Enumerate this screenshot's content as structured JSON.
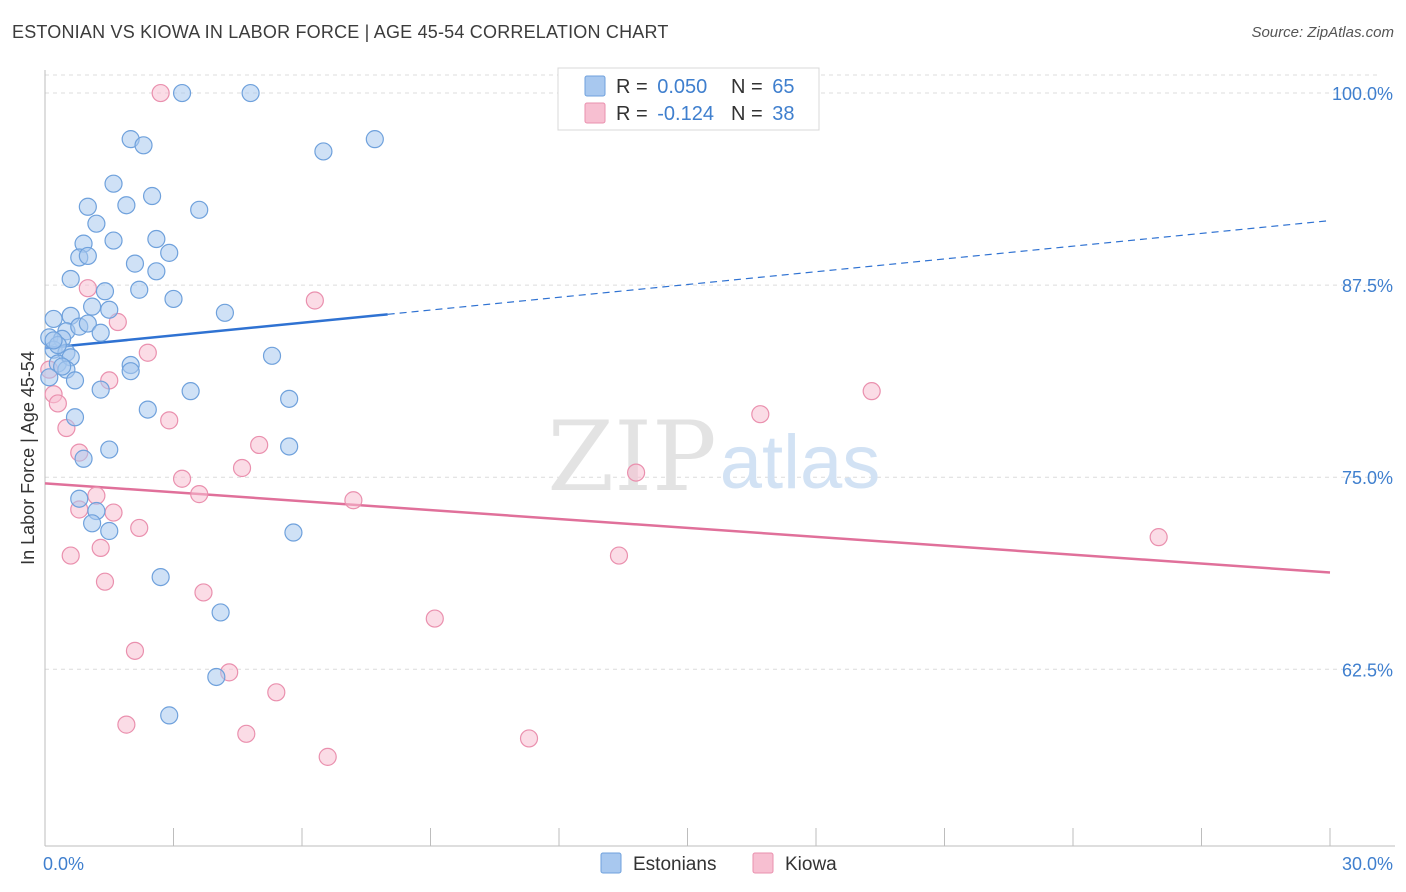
{
  "header": {
    "title": "ESTONIAN VS KIOWA IN LABOR FORCE | AGE 45-54 CORRELATION CHART",
    "source": "Source: ZipAtlas.com"
  },
  "watermark": {
    "zip": "ZIP",
    "atlas": "atlas"
  },
  "colors": {
    "blue_fill": "#a8c8ef",
    "blue_stroke": "#6fa1dc",
    "blue_line": "#2f72d2",
    "pink_fill": "#f7bfd1",
    "pink_stroke": "#ea90ae",
    "pink_line": "#e0709a",
    "grid": "#dcdcdc",
    "axis_text": "#3f7fce"
  },
  "legend": {
    "rows": [
      {
        "r_label": "R = ",
        "r_value": "0.050",
        "n_label": "N = ",
        "n_value": "65"
      },
      {
        "r_label": "R = ",
        "r_value": "-0.124",
        "n_label": "N = ",
        "n_value": "38"
      }
    ]
  },
  "bottom_legend": [
    "Estonians",
    "Kiowa"
  ],
  "chart_data": {
    "type": "scatter",
    "title": "ESTONIAN VS KIOWA IN LABOR FORCE | AGE 45-54 CORRELATION CHART",
    "xlabel": "",
    "ylabel": "In Labor Force | Age 45-54",
    "xlim": [
      0,
      30
    ],
    "ylim": [
      51,
      101.5
    ],
    "x_tick_labels": [
      "0.0%",
      "30.0%"
    ],
    "y_ticks": [
      62.5,
      75.0,
      87.5,
      100.0
    ],
    "y_tick_labels": [
      "62.5%",
      "75.0%",
      "87.5%",
      "100.0%"
    ],
    "grid": true,
    "series": [
      {
        "name": "Estonians",
        "R": 0.05,
        "N": 65,
        "trend": {
          "x0": 0,
          "y0": 83.4,
          "x1": 8.0,
          "y1": 85.6,
          "x_dashed_end": 30,
          "y_dashed_end": 91.7
        },
        "points": [
          [
            3.2,
            100.0
          ],
          [
            4.8,
            100.0
          ],
          [
            2.0,
            97.0
          ],
          [
            2.3,
            96.6
          ],
          [
            6.5,
            96.2
          ],
          [
            7.7,
            97.0
          ],
          [
            1.6,
            94.1
          ],
          [
            1.9,
            92.7
          ],
          [
            2.5,
            93.3
          ],
          [
            3.6,
            92.4
          ],
          [
            1.0,
            92.6
          ],
          [
            1.2,
            91.5
          ],
          [
            0.9,
            90.2
          ],
          [
            1.6,
            90.4
          ],
          [
            2.6,
            90.5
          ],
          [
            0.8,
            89.3
          ],
          [
            1.0,
            89.4
          ],
          [
            2.1,
            88.9
          ],
          [
            2.9,
            89.6
          ],
          [
            2.6,
            88.4
          ],
          [
            0.6,
            87.9
          ],
          [
            1.4,
            87.1
          ],
          [
            2.2,
            87.2
          ],
          [
            3.0,
            86.6
          ],
          [
            1.1,
            86.1
          ],
          [
            1.5,
            85.9
          ],
          [
            0.6,
            85.5
          ],
          [
            4.2,
            85.7
          ],
          [
            0.2,
            85.3
          ],
          [
            0.5,
            84.5
          ],
          [
            0.8,
            84.8
          ],
          [
            1.0,
            85.0
          ],
          [
            0.1,
            84.1
          ],
          [
            0.4,
            84.0
          ],
          [
            0.2,
            83.3
          ],
          [
            0.5,
            83.1
          ],
          [
            0.3,
            82.4
          ],
          [
            0.6,
            82.8
          ],
          [
            0.5,
            82.0
          ],
          [
            2.0,
            82.3
          ],
          [
            2.0,
            81.9
          ],
          [
            5.3,
            82.9
          ],
          [
            0.1,
            81.5
          ],
          [
            0.7,
            81.3
          ],
          [
            1.3,
            80.7
          ],
          [
            3.4,
            80.6
          ],
          [
            5.7,
            80.1
          ],
          [
            2.4,
            79.4
          ],
          [
            0.7,
            78.9
          ],
          [
            1.5,
            76.8
          ],
          [
            0.9,
            76.2
          ],
          [
            5.7,
            77.0
          ],
          [
            0.8,
            73.6
          ],
          [
            1.2,
            72.8
          ],
          [
            1.1,
            72.0
          ],
          [
            1.5,
            71.5
          ],
          [
            5.8,
            71.4
          ],
          [
            2.7,
            68.5
          ],
          [
            4.1,
            66.2
          ],
          [
            4.0,
            62.0
          ],
          [
            2.9,
            59.5
          ],
          [
            0.3,
            83.6
          ],
          [
            0.4,
            82.2
          ],
          [
            0.2,
            83.9
          ],
          [
            1.3,
            84.4
          ]
        ]
      },
      {
        "name": "Kiowa",
        "R": -0.124,
        "N": 38,
        "trend": {
          "x0": 0,
          "y0": 74.6,
          "x1": 30,
          "y1": 68.8
        },
        "points": [
          [
            2.7,
            100.0
          ],
          [
            1.0,
            87.3
          ],
          [
            6.3,
            86.5
          ],
          [
            1.7,
            85.1
          ],
          [
            2.4,
            83.1
          ],
          [
            0.1,
            82.0
          ],
          [
            1.5,
            81.3
          ],
          [
            0.2,
            80.4
          ],
          [
            0.3,
            79.8
          ],
          [
            2.9,
            78.7
          ],
          [
            0.5,
            78.2
          ],
          [
            19.3,
            80.6
          ],
          [
            16.7,
            79.1
          ],
          [
            5.0,
            77.1
          ],
          [
            0.8,
            76.6
          ],
          [
            4.6,
            75.6
          ],
          [
            13.8,
            75.3
          ],
          [
            3.2,
            74.9
          ],
          [
            3.6,
            73.9
          ],
          [
            1.2,
            73.8
          ],
          [
            7.2,
            73.5
          ],
          [
            0.8,
            72.9
          ],
          [
            1.6,
            72.7
          ],
          [
            2.2,
            71.7
          ],
          [
            26.0,
            71.1
          ],
          [
            1.3,
            70.4
          ],
          [
            0.6,
            69.9
          ],
          [
            13.4,
            69.9
          ],
          [
            1.4,
            68.2
          ],
          [
            3.7,
            67.5
          ],
          [
            9.1,
            65.8
          ],
          [
            2.1,
            63.7
          ],
          [
            4.3,
            62.3
          ],
          [
            5.4,
            61.0
          ],
          [
            1.9,
            58.9
          ],
          [
            4.7,
            58.3
          ],
          [
            11.3,
            58.0
          ],
          [
            6.6,
            56.8
          ]
        ]
      }
    ]
  }
}
